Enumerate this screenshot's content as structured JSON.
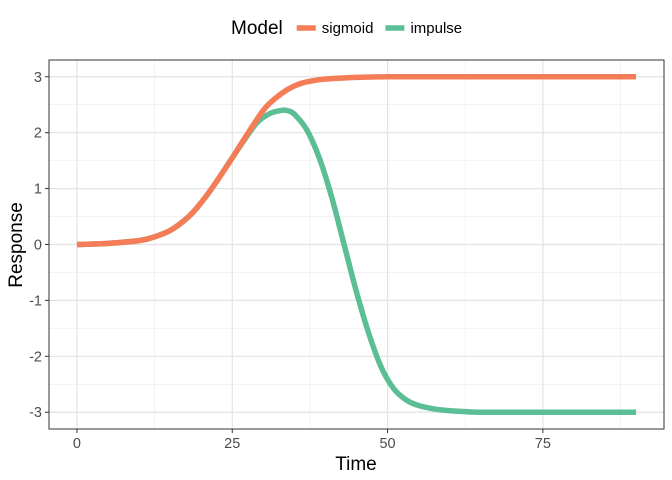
{
  "chart_data": {
    "type": "line",
    "xlabel": "Time",
    "ylabel": "Response",
    "xlim": [
      -4.5,
      94.5
    ],
    "ylim": [
      -3.3,
      3.3
    ],
    "x_ticks": [
      0,
      25,
      50,
      75
    ],
    "y_ticks": [
      -3,
      -2,
      -1,
      0,
      1,
      2,
      3
    ],
    "grid": true,
    "legend": {
      "title": "Model",
      "position": "top"
    },
    "series": [
      {
        "name": "sigmoid",
        "color": "#F47C56",
        "x": [
          0,
          5,
          10,
          12,
          15,
          18,
          20,
          22,
          25,
          27,
          30,
          32,
          34,
          36,
          38,
          40,
          43,
          45,
          50,
          55,
          60,
          70,
          80,
          90
        ],
        "y": [
          0,
          0.02,
          0.07,
          0.12,
          0.25,
          0.5,
          0.75,
          1.05,
          1.55,
          1.9,
          2.4,
          2.62,
          2.78,
          2.88,
          2.93,
          2.96,
          2.98,
          2.99,
          3.0,
          3.0,
          3.0,
          3.0,
          3.0,
          3.0
        ]
      },
      {
        "name": "impulse",
        "color": "#5BBE95",
        "x": [
          0,
          5,
          10,
          12,
          15,
          18,
          20,
          22,
          25,
          27,
          29,
          31,
          33,
          34,
          35,
          37,
          39,
          41,
          43,
          45,
          47,
          49,
          51,
          53,
          55,
          58,
          61,
          65,
          70,
          80,
          90
        ],
        "y": [
          0,
          0.02,
          0.07,
          0.12,
          0.25,
          0.5,
          0.75,
          1.05,
          1.55,
          1.88,
          2.18,
          2.34,
          2.4,
          2.39,
          2.33,
          2.05,
          1.55,
          0.85,
          0.0,
          -0.85,
          -1.6,
          -2.2,
          -2.58,
          -2.78,
          -2.88,
          -2.95,
          -2.98,
          -3.0,
          -3.0,
          -3.0,
          -3.0
        ]
      }
    ]
  }
}
